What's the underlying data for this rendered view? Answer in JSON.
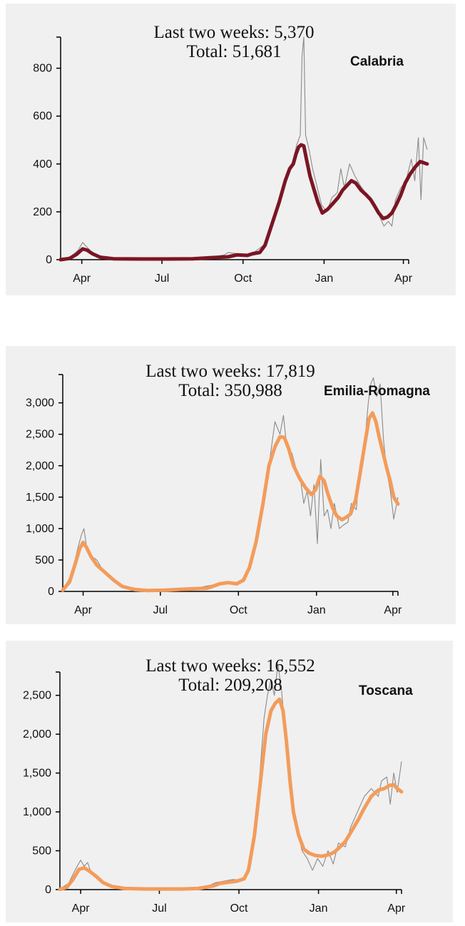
{
  "chart_data": [
    {
      "type": "line",
      "region": "Calabria",
      "annotation": {
        "last_two_weeks": "Last two weeks: 5,370",
        "total": "Total: 51,681"
      },
      "color": "#7b1523",
      "ylim": [
        0,
        930
      ],
      "yticks": [
        0,
        200,
        400,
        600,
        800
      ],
      "ytick_labels": [
        "0",
        "200",
        "400",
        "600",
        "800"
      ],
      "xlim": [
        0,
        395
      ],
      "xticks": [
        24,
        115,
        207,
        299,
        389
      ],
      "xtick_labels": [
        "Apr",
        "Jul",
        "Oct",
        "Jan",
        "Apr"
      ],
      "trend": [
        [
          0,
          0
        ],
        [
          10,
          5
        ],
        [
          18,
          22
        ],
        [
          25,
          45
        ],
        [
          30,
          40
        ],
        [
          36,
          25
        ],
        [
          45,
          10
        ],
        [
          60,
          4
        ],
        [
          90,
          3
        ],
        [
          120,
          3
        ],
        [
          150,
          4
        ],
        [
          170,
          8
        ],
        [
          190,
          12
        ],
        [
          200,
          20
        ],
        [
          212,
          18
        ],
        [
          218,
          25
        ],
        [
          226,
          30
        ],
        [
          232,
          60
        ],
        [
          240,
          150
        ],
        [
          248,
          240
        ],
        [
          255,
          330
        ],
        [
          260,
          380
        ],
        [
          264,
          400
        ],
        [
          267,
          440
        ],
        [
          270,
          470
        ],
        [
          273,
          480
        ],
        [
          276,
          475
        ],
        [
          279,
          420
        ],
        [
          283,
          350
        ],
        [
          287,
          300
        ],
        [
          292,
          240
        ],
        [
          297,
          195
        ],
        [
          303,
          210
        ],
        [
          309,
          235
        ],
        [
          315,
          260
        ],
        [
          320,
          290
        ],
        [
          325,
          310
        ],
        [
          330,
          330
        ],
        [
          335,
          320
        ],
        [
          341,
          290
        ],
        [
          347,
          270
        ],
        [
          352,
          250
        ],
        [
          357,
          220
        ],
        [
          361,
          195
        ],
        [
          366,
          172
        ],
        [
          371,
          178
        ],
        [
          376,
          195
        ],
        [
          381,
          230
        ],
        [
          386,
          270
        ],
        [
          391,
          320
        ],
        [
          397,
          360
        ],
        [
          403,
          390
        ],
        [
          408,
          410
        ],
        [
          412,
          405
        ],
        [
          416,
          400
        ]
      ],
      "raw": [
        [
          0,
          0
        ],
        [
          10,
          8
        ],
        [
          20,
          40
        ],
        [
          25,
          72
        ],
        [
          28,
          60
        ],
        [
          32,
          45
        ],
        [
          38,
          20
        ],
        [
          50,
          8
        ],
        [
          80,
          4
        ],
        [
          120,
          4
        ],
        [
          150,
          6
        ],
        [
          170,
          10
        ],
        [
          186,
          20
        ],
        [
          190,
          30
        ],
        [
          200,
          25
        ],
        [
          210,
          15
        ],
        [
          220,
          32
        ],
        [
          230,
          60
        ],
        [
          240,
          140
        ],
        [
          250,
          260
        ],
        [
          258,
          350
        ],
        [
          264,
          420
        ],
        [
          268,
          480
        ],
        [
          272,
          520
        ],
        [
          274,
          850
        ],
        [
          276,
          930
        ],
        [
          278,
          520
        ],
        [
          282,
          460
        ],
        [
          286,
          380
        ],
        [
          290,
          320
        ],
        [
          296,
          230
        ],
        [
          302,
          200
        ],
        [
          308,
          260
        ],
        [
          314,
          280
        ],
        [
          318,
          380
        ],
        [
          322,
          300
        ],
        [
          328,
          400
        ],
        [
          334,
          350
        ],
        [
          340,
          310
        ],
        [
          346,
          280
        ],
        [
          352,
          260
        ],
        [
          357,
          230
        ],
        [
          362,
          180
        ],
        [
          367,
          140
        ],
        [
          372,
          160
        ],
        [
          376,
          140
        ],
        [
          380,
          250
        ],
        [
          386,
          300
        ],
        [
          392,
          330
        ],
        [
          398,
          420
        ],
        [
          402,
          330
        ],
        [
          406,
          510
        ],
        [
          409,
          250
        ],
        [
          412,
          510
        ],
        [
          416,
          460
        ]
      ]
    },
    {
      "type": "line",
      "region": "Emilia-Romagna",
      "annotation": {
        "last_two_weeks": "Last two weeks: 17,819",
        "total": "Total: 350,988"
      },
      "color": "#f39c5b",
      "ylim": [
        0,
        3450
      ],
      "yticks": [
        0,
        500,
        1000,
        1500,
        2000,
        2500,
        3000
      ],
      "ytick_labels": [
        "0",
        "500",
        "1,000",
        "1,500",
        "2,000",
        "2,500",
        "3,000"
      ],
      "xlim": [
        0,
        395
      ],
      "xticks": [
        24,
        115,
        207,
        299,
        389
      ],
      "xtick_labels": [
        "Apr",
        "Jul",
        "Oct",
        "Jan",
        "Apr"
      ],
      "trend": [
        [
          0,
          20
        ],
        [
          8,
          150
        ],
        [
          15,
          450
        ],
        [
          20,
          680
        ],
        [
          24,
          780
        ],
        [
          28,
          700
        ],
        [
          33,
          560
        ],
        [
          40,
          420
        ],
        [
          50,
          300
        ],
        [
          60,
          180
        ],
        [
          70,
          80
        ],
        [
          85,
          30
        ],
        [
          100,
          15
        ],
        [
          120,
          20
        ],
        [
          150,
          40
        ],
        [
          170,
          50
        ],
        [
          185,
          120
        ],
        [
          195,
          140
        ],
        [
          205,
          120
        ],
        [
          213,
          180
        ],
        [
          220,
          380
        ],
        [
          228,
          800
        ],
        [
          236,
          1400
        ],
        [
          243,
          2000
        ],
        [
          250,
          2300
        ],
        [
          256,
          2460
        ],
        [
          261,
          2450
        ],
        [
          266,
          2280
        ],
        [
          272,
          2000
        ],
        [
          279,
          1800
        ],
        [
          286,
          1650
        ],
        [
          293,
          1540
        ],
        [
          298,
          1620
        ],
        [
          303,
          1830
        ],
        [
          308,
          1760
        ],
        [
          312,
          1570
        ],
        [
          318,
          1330
        ],
        [
          323,
          1200
        ],
        [
          329,
          1140
        ],
        [
          334,
          1180
        ],
        [
          339,
          1230
        ],
        [
          345,
          1450
        ],
        [
          350,
          1850
        ],
        [
          356,
          2350
        ],
        [
          361,
          2750
        ],
        [
          365,
          2840
        ],
        [
          369,
          2700
        ],
        [
          373,
          2450
        ],
        [
          378,
          2170
        ],
        [
          382,
          1950
        ],
        [
          386,
          1750
        ],
        [
          390,
          1500
        ],
        [
          395,
          1390
        ]
      ],
      "raw": [
        [
          0,
          30
        ],
        [
          10,
          250
        ],
        [
          18,
          700
        ],
        [
          22,
          900
        ],
        [
          25,
          1000
        ],
        [
          28,
          720
        ],
        [
          34,
          560
        ],
        [
          40,
          500
        ],
        [
          48,
          320
        ],
        [
          56,
          220
        ],
        [
          64,
          120
        ],
        [
          76,
          60
        ],
        [
          90,
          30
        ],
        [
          110,
          20
        ],
        [
          130,
          30
        ],
        [
          160,
          60
        ],
        [
          180,
          110
        ],
        [
          190,
          150
        ],
        [
          202,
          130
        ],
        [
          214,
          160
        ],
        [
          222,
          400
        ],
        [
          230,
          900
        ],
        [
          238,
          1600
        ],
        [
          244,
          2100
        ],
        [
          250,
          2700
        ],
        [
          256,
          2500
        ],
        [
          260,
          2800
        ],
        [
          264,
          2300
        ],
        [
          270,
          2200
        ],
        [
          276,
          1900
        ],
        [
          280,
          1800
        ],
        [
          284,
          1400
        ],
        [
          288,
          1600
        ],
        [
          292,
          1200
        ],
        [
          296,
          1700
        ],
        [
          300,
          760
        ],
        [
          304,
          2100
        ],
        [
          308,
          1200
        ],
        [
          312,
          1300
        ],
        [
          316,
          1000
        ],
        [
          320,
          1400
        ],
        [
          326,
          1000
        ],
        [
          330,
          1050
        ],
        [
          336,
          1100
        ],
        [
          340,
          1400
        ],
        [
          346,
          1300
        ],
        [
          350,
          2000
        ],
        [
          356,
          2400
        ],
        [
          360,
          3000
        ],
        [
          363,
          3300
        ],
        [
          366,
          3400
        ],
        [
          370,
          3100
        ],
        [
          374,
          3300
        ],
        [
          378,
          2400
        ],
        [
          382,
          1900
        ],
        [
          386,
          1600
        ],
        [
          390,
          1150
        ],
        [
          395,
          1500
        ]
      ]
    },
    {
      "type": "line",
      "region": "Toscana",
      "annotation": {
        "last_two_weeks": "Last two weeks: 16,552",
        "total": "Total: 209,208"
      },
      "color": "#f39c5b",
      "ylim": [
        0,
        2800
      ],
      "yticks": [
        0,
        500,
        1000,
        1500,
        2000,
        2500
      ],
      "ytick_labels": [
        "0",
        "500",
        "1,000",
        "1,500",
        "2,000",
        "2,500"
      ],
      "xlim": [
        0,
        395
      ],
      "xticks": [
        24,
        115,
        207,
        299,
        389
      ],
      "xtick_labels": [
        "Apr",
        "Jul",
        "Oct",
        "Jan",
        "Apr"
      ],
      "trend": [
        [
          0,
          5
        ],
        [
          8,
          30
        ],
        [
          15,
          130
        ],
        [
          22,
          260
        ],
        [
          28,
          280
        ],
        [
          34,
          240
        ],
        [
          42,
          170
        ],
        [
          50,
          90
        ],
        [
          60,
          40
        ],
        [
          75,
          15
        ],
        [
          100,
          8
        ],
        [
          140,
          8
        ],
        [
          160,
          15
        ],
        [
          178,
          50
        ],
        [
          185,
          80
        ],
        [
          195,
          95
        ],
        [
          205,
          110
        ],
        [
          213,
          140
        ],
        [
          218,
          250
        ],
        [
          225,
          700
        ],
        [
          232,
          1400
        ],
        [
          238,
          2000
        ],
        [
          244,
          2300
        ],
        [
          249,
          2400
        ],
        [
          254,
          2450
        ],
        [
          258,
          2300
        ],
        [
          262,
          1900
        ],
        [
          266,
          1400
        ],
        [
          270,
          1000
        ],
        [
          276,
          700
        ],
        [
          282,
          520
        ],
        [
          288,
          470
        ],
        [
          295,
          440
        ],
        [
          303,
          430
        ],
        [
          311,
          450
        ],
        [
          317,
          480
        ],
        [
          323,
          540
        ],
        [
          330,
          620
        ],
        [
          337,
          750
        ],
        [
          345,
          900
        ],
        [
          352,
          1050
        ],
        [
          360,
          1200
        ],
        [
          368,
          1280
        ],
        [
          375,
          1300
        ],
        [
          381,
          1340
        ],
        [
          386,
          1350
        ],
        [
          390,
          1300
        ],
        [
          395,
          1260
        ]
      ],
      "raw": [
        [
          0,
          10
        ],
        [
          10,
          80
        ],
        [
          18,
          260
        ],
        [
          24,
          380
        ],
        [
          28,
          300
        ],
        [
          32,
          350
        ],
        [
          36,
          220
        ],
        [
          44,
          150
        ],
        [
          52,
          80
        ],
        [
          64,
          30
        ],
        [
          80,
          10
        ],
        [
          120,
          8
        ],
        [
          150,
          20
        ],
        [
          170,
          40
        ],
        [
          180,
          90
        ],
        [
          190,
          110
        ],
        [
          200,
          130
        ],
        [
          212,
          120
        ],
        [
          218,
          300
        ],
        [
          226,
          800
        ],
        [
          232,
          1600
        ],
        [
          236,
          2200
        ],
        [
          240,
          2500
        ],
        [
          244,
          2700
        ],
        [
          248,
          2500
        ],
        [
          252,
          2900
        ],
        [
          256,
          2600
        ],
        [
          260,
          2100
        ],
        [
          264,
          1600
        ],
        [
          268,
          1100
        ],
        [
          274,
          800
        ],
        [
          280,
          500
        ],
        [
          286,
          400
        ],
        [
          292,
          250
        ],
        [
          298,
          400
        ],
        [
          304,
          300
        ],
        [
          310,
          500
        ],
        [
          316,
          330
        ],
        [
          322,
          600
        ],
        [
          330,
          550
        ],
        [
          336,
          800
        ],
        [
          344,
          1000
        ],
        [
          352,
          1200
        ],
        [
          360,
          1300
        ],
        [
          368,
          1200
        ],
        [
          372,
          1400
        ],
        [
          378,
          1450
        ],
        [
          382,
          1100
        ],
        [
          386,
          1500
        ],
        [
          390,
          1250
        ],
        [
          395,
          1650
        ]
      ]
    }
  ]
}
